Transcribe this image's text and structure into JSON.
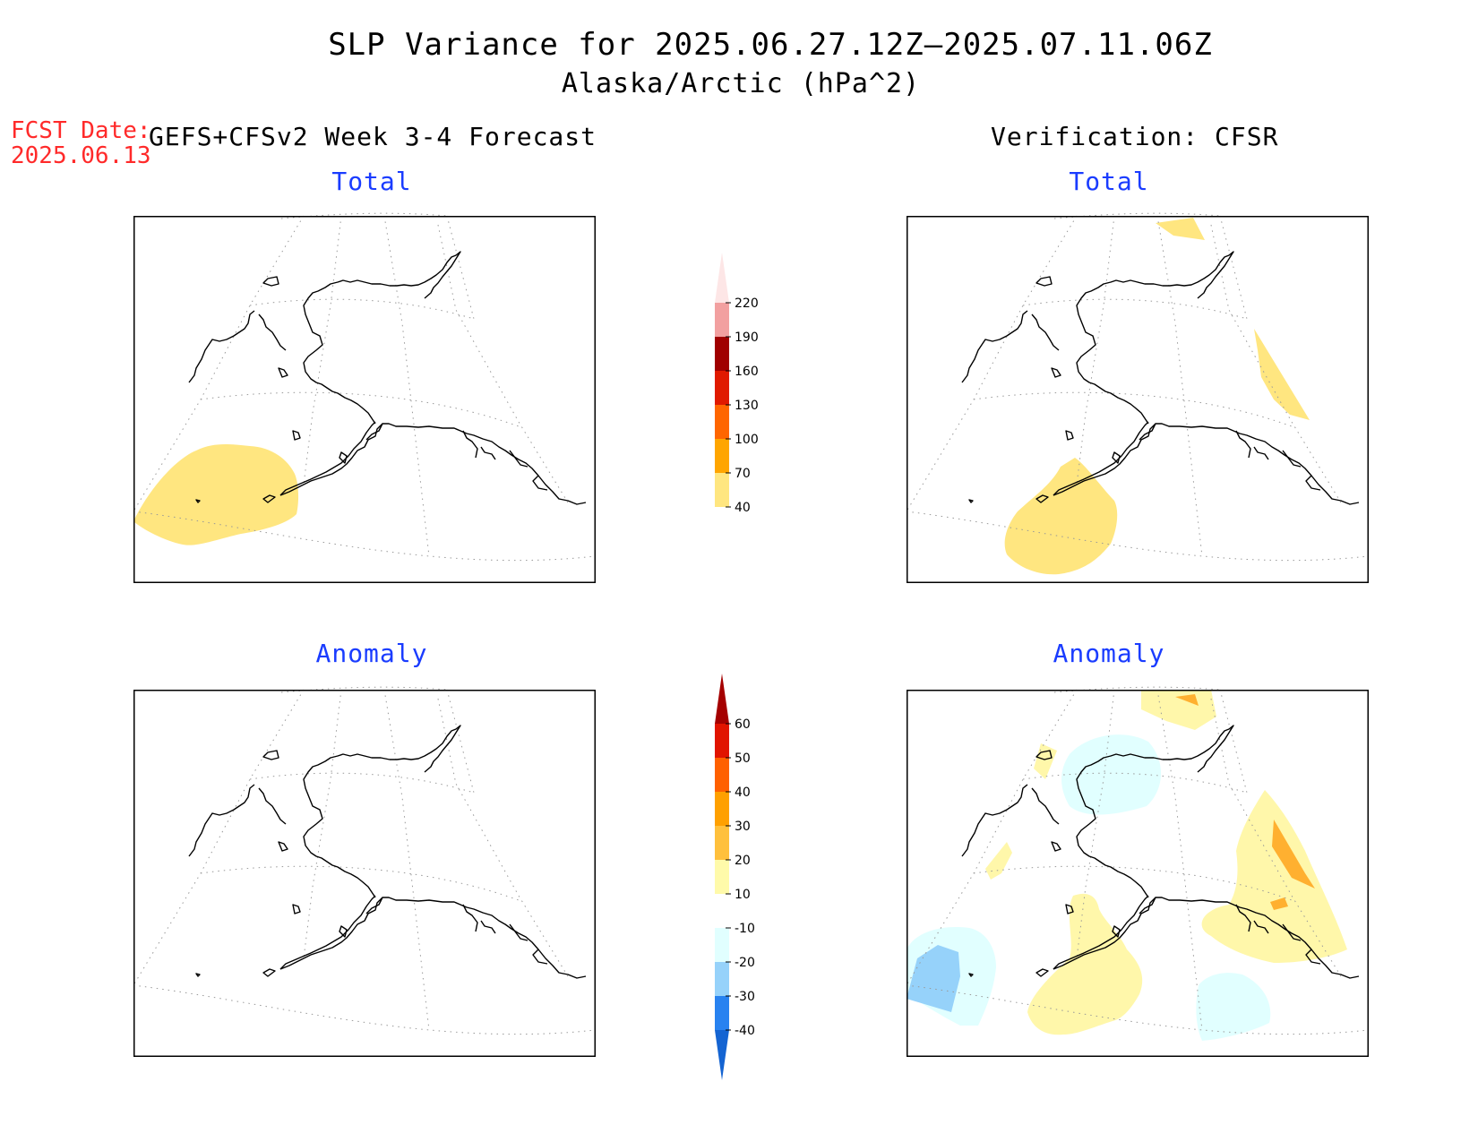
{
  "title": {
    "line1": "SLP Variance for 2025.06.27.12Z—2025.07.11.06Z",
    "line2": "Alaska/Arctic (hPa^2)"
  },
  "forecast": {
    "fcst_label": "FCST Date:",
    "fcst_date": "2025.06.13",
    "header": "GEFS+CFSv2 Week 3-4 Forecast"
  },
  "verification": {
    "header": "Verification: CFSR"
  },
  "panels": {
    "fcst_total": {
      "label": "Total"
    },
    "verif_total": {
      "label": "Total"
    },
    "fcst_anomaly": {
      "label": "Anomaly"
    },
    "verif_anomaly": {
      "label": "Anomaly"
    }
  },
  "colorbar_total": {
    "ticks": [
      "40",
      "70",
      "100",
      "130",
      "160",
      "190",
      "220"
    ],
    "colors": [
      "#ffe680",
      "#ffa500",
      "#ff6600",
      "#e01a00",
      "#a00000",
      "#f2a0a0",
      "#fde6e6"
    ]
  },
  "colorbar_anomaly": {
    "ticks": [
      "-40",
      "-30",
      "-20",
      "-10",
      "10",
      "20",
      "30",
      "40",
      "50",
      "60"
    ],
    "colors": [
      "#1464d2",
      "#2882f0",
      "#96d2fa",
      "#e1ffff",
      "#ffffff",
      "#fffaaa",
      "#ffc03c",
      "#ffa000",
      "#ff6000",
      "#e11400",
      "#a50000"
    ]
  },
  "palette": {
    "pale_yellow": "#fff7aa",
    "light_yellow": "#ffe680",
    "orange": "#ffb030",
    "light_cyan": "#e1ffff",
    "light_blue": "#96d2fa"
  }
}
